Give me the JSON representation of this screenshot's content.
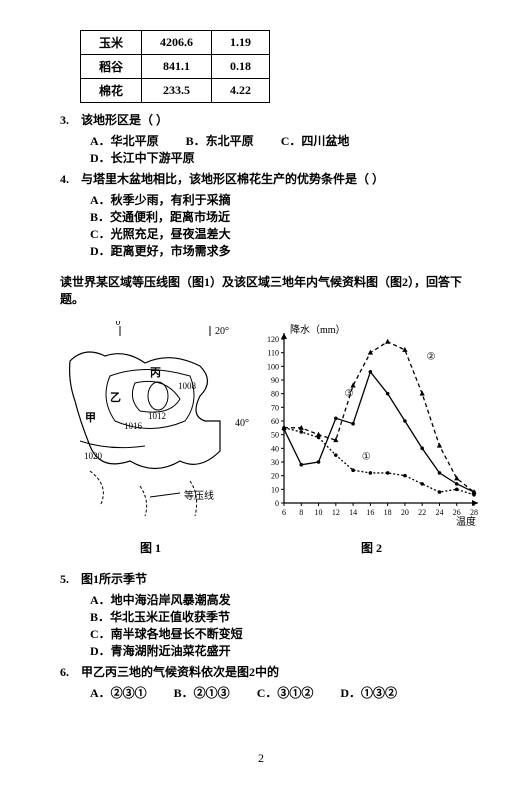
{
  "table": {
    "rows": [
      [
        "玉米",
        "4206.6",
        "1.19"
      ],
      [
        "稻谷",
        "841.1",
        "0.18"
      ],
      [
        "棉花",
        "233.5",
        "4.22"
      ]
    ]
  },
  "questions": {
    "q3": {
      "num": "3.",
      "stem": "该地形区是（ ）",
      "opts": [
        "A．华北平原",
        "B．东北平原",
        "C．四川盆地",
        "D．长江中下游平原"
      ]
    },
    "q4": {
      "num": "4.",
      "stem": "与塔里木盆地相比，该地形区棉花生产的优势条件是（ ）",
      "opts": [
        "A．秋季少雨，有利于采摘",
        "B．交通便利，距离市场近",
        "C．光照充足，昼夜温差大",
        "D．距离更好，市场需求多"
      ]
    },
    "passage": "读世界某区域等压线图（图1）及该区域三地年内气候资料图（图2），回答下题。",
    "q5": {
      "num": "5.",
      "stem": "图1所示季节",
      "opts": [
        "A．地中海沿岸风暴潮高发",
        "B．华北玉米正值收获季节",
        "C．南半球各地昼长不断变短",
        "D．青海湖附近油菜花盛开"
      ]
    },
    "q6": {
      "num": "6.",
      "stem": "甲乙丙三地的气候资料依次是图2中的",
      "opts": [
        "A．②③①",
        "B．②①③",
        "C．③①②",
        "D．①③②"
      ]
    }
  },
  "fig1": {
    "label": "图 1",
    "lon1": "0°",
    "lon2": "20°",
    "lat": "40°",
    "iso1": "1016",
    "iso2": "1012",
    "iso3": "1008",
    "iso4": "1020",
    "p1": "甲",
    "p2": "乙",
    "p3": "丙",
    "legend": "等压线"
  },
  "fig2": {
    "label": "图 2",
    "ylabel": "降水（mm）",
    "xlabel": "温度（℃）",
    "yticks": [
      "0",
      "10",
      "20",
      "30",
      "40",
      "50",
      "60",
      "70",
      "80",
      "90",
      "100",
      "110",
      "120"
    ],
    "xticks": [
      "6",
      "8",
      "10",
      "12",
      "14",
      "16",
      "18",
      "20",
      "22",
      "24",
      "26",
      "28"
    ],
    "marks": [
      "①",
      "②",
      "③"
    ],
    "series1": {
      "pts": [
        [
          6,
          55
        ],
        [
          8,
          52
        ],
        [
          10,
          48
        ],
        [
          12,
          35
        ],
        [
          14,
          24
        ],
        [
          16,
          22
        ],
        [
          18,
          22
        ],
        [
          20,
          20
        ],
        [
          22,
          14
        ],
        [
          24,
          8
        ],
        [
          26,
          10
        ],
        [
          28,
          6
        ]
      ]
    },
    "series2": {
      "pts": [
        [
          6,
          55
        ],
        [
          8,
          55
        ],
        [
          10,
          50
        ],
        [
          12,
          46
        ],
        [
          14,
          86
        ],
        [
          16,
          110
        ],
        [
          18,
          118
        ],
        [
          20,
          112
        ],
        [
          22,
          80
        ],
        [
          24,
          42
        ],
        [
          26,
          18
        ],
        [
          28,
          8
        ]
      ]
    },
    "series3": {
      "pts": [
        [
          6,
          54
        ],
        [
          8,
          28
        ],
        [
          10,
          30
        ],
        [
          12,
          62
        ],
        [
          14,
          58
        ],
        [
          16,
          96
        ],
        [
          18,
          80
        ],
        [
          20,
          60
        ],
        [
          22,
          40
        ],
        [
          24,
          22
        ],
        [
          26,
          14
        ],
        [
          28,
          8
        ]
      ]
    },
    "colors": {
      "axis": "#000000",
      "grid": "#000000",
      "line": "#000000"
    }
  },
  "pagenum": "2"
}
